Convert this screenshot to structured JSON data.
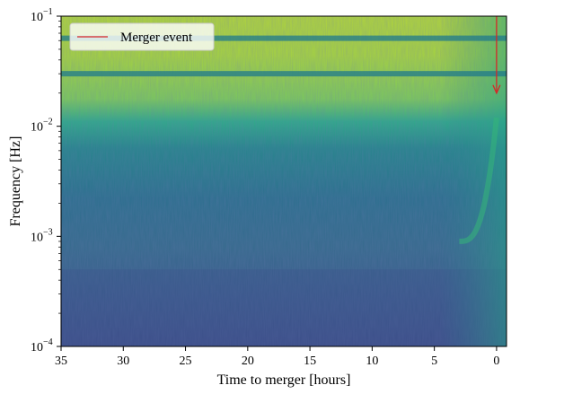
{
  "chart_data": {
    "type": "heatmap",
    "subtype": "spectrogram",
    "xlabel": "Time to merger [hours]",
    "ylabel": "Frequency [Hz]",
    "x_axis": {
      "range": [
        35,
        -0.8
      ],
      "direction": "decreasing",
      "ticks": [
        "35",
        "30",
        "25",
        "20",
        "15",
        "10",
        "5",
        "0"
      ]
    },
    "y_axis": {
      "scale": "log",
      "range": [
        0.0001,
        0.1
      ],
      "ticks": [
        {
          "base": "10",
          "exp": "−1"
        },
        {
          "base": "10",
          "exp": "−2"
        },
        {
          "base": "10",
          "exp": "−3"
        },
        {
          "base": "10",
          "exp": "−4"
        }
      ]
    },
    "colormap": "viridis",
    "features": {
      "spectral_lines_hz": [
        0.03,
        0.063
      ],
      "chirp": {
        "from_hours": 3,
        "to_hours": 0,
        "freq_from_hz": 0.0009,
        "freq_to_hz": 0.012
      },
      "noise_floor_hz": [
        0.0003,
        0.002
      ]
    },
    "annotation": {
      "type": "arrow",
      "color": "#d62728",
      "x_hours": 0,
      "from_hz": 0.1,
      "to_hz": 0.02
    },
    "legend": {
      "placement": "top-left",
      "entries": [
        {
          "label": "Merger event",
          "color": "#d62728"
        }
      ]
    }
  }
}
